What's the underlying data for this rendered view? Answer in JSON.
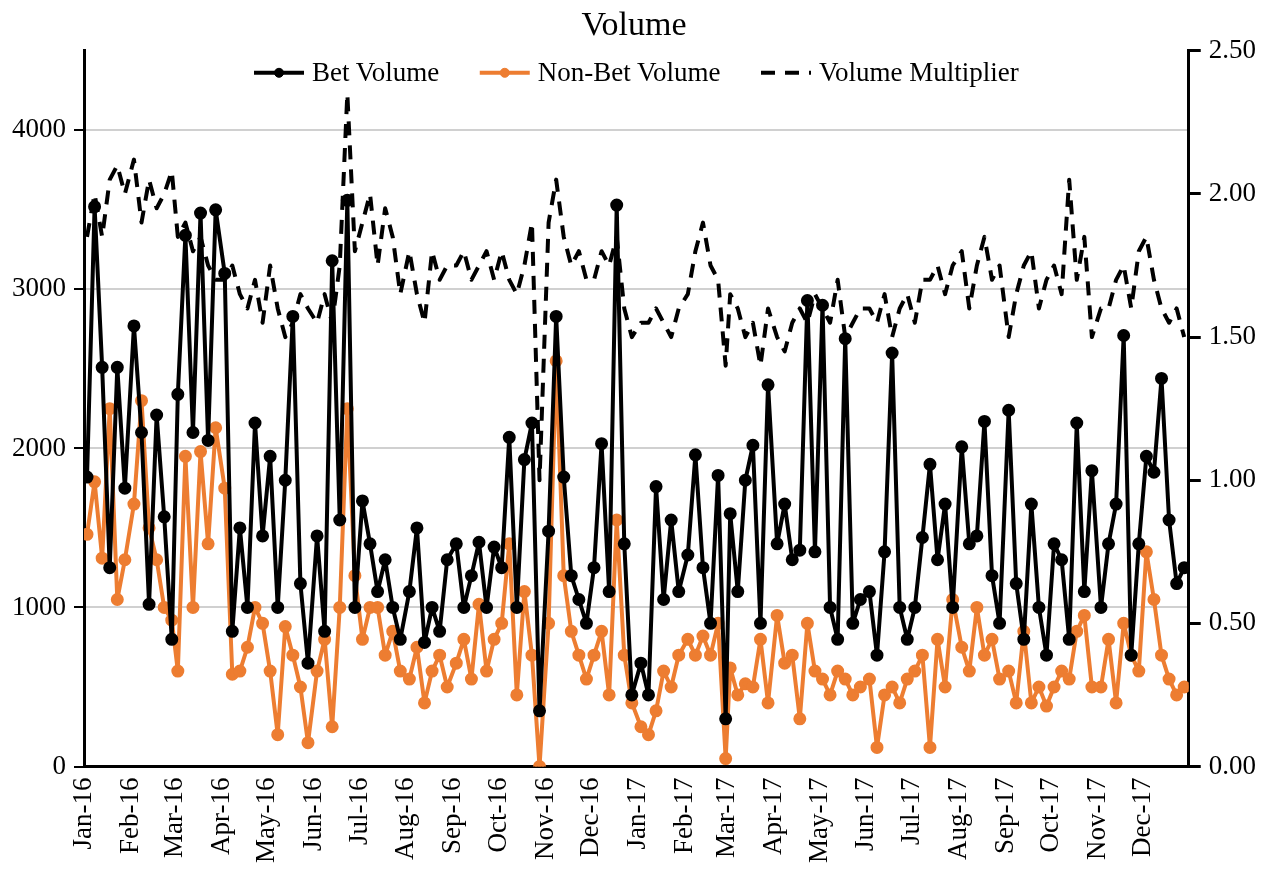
{
  "chart_data": {
    "type": "line",
    "title": "Volume",
    "x": [
      "2016-01-03",
      "2016-01-08",
      "2016-01-13",
      "2016-01-18",
      "2016-01-23",
      "2016-01-28",
      "2016-02-03",
      "2016-02-08",
      "2016-02-13",
      "2016-02-18",
      "2016-02-23",
      "2016-02-28",
      "2016-03-03",
      "2016-03-08",
      "2016-03-13",
      "2016-03-18",
      "2016-03-23",
      "2016-03-28",
      "2016-04-03",
      "2016-04-08",
      "2016-04-13",
      "2016-04-18",
      "2016-04-23",
      "2016-04-28",
      "2016-05-03",
      "2016-05-08",
      "2016-05-13",
      "2016-05-18",
      "2016-05-23",
      "2016-05-28",
      "2016-06-03",
      "2016-06-08",
      "2016-06-13",
      "2016-06-18",
      "2016-06-23",
      "2016-06-28",
      "2016-07-03",
      "2016-07-08",
      "2016-07-13",
      "2016-07-18",
      "2016-07-23",
      "2016-07-28",
      "2016-08-03",
      "2016-08-08",
      "2016-08-13",
      "2016-08-18",
      "2016-08-23",
      "2016-08-28",
      "2016-09-03",
      "2016-09-08",
      "2016-09-13",
      "2016-09-18",
      "2016-09-23",
      "2016-09-28",
      "2016-10-03",
      "2016-10-08",
      "2016-10-13",
      "2016-10-18",
      "2016-10-23",
      "2016-10-28",
      "2016-11-03",
      "2016-11-08",
      "2016-11-13",
      "2016-11-18",
      "2016-11-23",
      "2016-11-28",
      "2016-12-03",
      "2016-12-08",
      "2016-12-13",
      "2016-12-18",
      "2016-12-23",
      "2016-12-28",
      "2017-01-03",
      "2017-01-08",
      "2017-01-13",
      "2017-01-18",
      "2017-01-23",
      "2017-01-28",
      "2017-02-03",
      "2017-02-08",
      "2017-02-13",
      "2017-02-18",
      "2017-02-23",
      "2017-02-28",
      "2017-03-03",
      "2017-03-08",
      "2017-03-13",
      "2017-03-18",
      "2017-03-23",
      "2017-03-28",
      "2017-04-03",
      "2017-04-08",
      "2017-04-13",
      "2017-04-18",
      "2017-04-23",
      "2017-04-28",
      "2017-05-03",
      "2017-05-08",
      "2017-05-13",
      "2017-05-18",
      "2017-05-23",
      "2017-05-28",
      "2017-06-03",
      "2017-06-08",
      "2017-06-13",
      "2017-06-18",
      "2017-06-23",
      "2017-06-28",
      "2017-07-03",
      "2017-07-08",
      "2017-07-13",
      "2017-07-18",
      "2017-07-23",
      "2017-07-28",
      "2017-08-03",
      "2017-08-08",
      "2017-08-13",
      "2017-08-18",
      "2017-08-23",
      "2017-08-28",
      "2017-09-03",
      "2017-09-08",
      "2017-09-13",
      "2017-09-18",
      "2017-09-23",
      "2017-09-28",
      "2017-10-03",
      "2017-10-08",
      "2017-10-13",
      "2017-10-18",
      "2017-10-23",
      "2017-10-28",
      "2017-11-03",
      "2017-11-08",
      "2017-11-13",
      "2017-11-18",
      "2017-11-23",
      "2017-11-28",
      "2017-12-03",
      "2017-12-08",
      "2017-12-13",
      "2017-12-18",
      "2017-12-23",
      "2017-12-28"
    ],
    "series": [
      {
        "name": "Bet Volume",
        "color": "#000000",
        "marker": "circle",
        "line_style": "solid",
        "values": [
          1820,
          3520,
          2510,
          1250,
          2510,
          1750,
          2770,
          2100,
          1020,
          2210,
          1570,
          800,
          2340,
          3340,
          2100,
          3480,
          2050,
          3500,
          3100,
          850,
          1500,
          1000,
          2160,
          1450,
          1950,
          1000,
          1800,
          2830,
          1150,
          650,
          1450,
          850,
          3180,
          1550,
          3560,
          1000,
          1670,
          1400,
          1100,
          1300,
          1000,
          800,
          1100,
          1500,
          780,
          1000,
          850,
          1300,
          1400,
          1000,
          1200,
          1410,
          1000,
          1380,
          1250,
          2070,
          1000,
          1930,
          2160,
          350,
          1480,
          2830,
          1820,
          1200,
          1050,
          900,
          1250,
          2030,
          1100,
          3530,
          1400,
          450,
          650,
          450,
          1760,
          1050,
          1550,
          1100,
          1330,
          1960,
          1250,
          900,
          1830,
          300,
          1590,
          1100,
          1800,
          2020,
          900,
          2400,
          1400,
          1650,
          1300,
          1360,
          2930,
          1350,
          2900,
          1000,
          800,
          2690,
          900,
          1050,
          1100,
          700,
          1350,
          2600,
          1000,
          800,
          1000,
          1440,
          1900,
          1300,
          1650,
          1000,
          2010,
          1400,
          1450,
          2170,
          1200,
          900,
          2240,
          1150,
          800,
          1650,
          1000,
          700,
          1400,
          1300,
          800,
          2160,
          1100,
          1860,
          1000,
          1400,
          1650,
          2710,
          700,
          1400,
          1950,
          1850,
          2440,
          1550,
          1150,
          1250
        ]
      },
      {
        "name": "Non-Bet Volume",
        "color": "#ed7d31",
        "marker": "circle",
        "line_style": "solid",
        "values": [
          1460,
          1790,
          1310,
          2250,
          1050,
          1300,
          1650,
          2300,
          1500,
          1300,
          1000,
          920,
          600,
          1950,
          1000,
          1980,
          1400,
          2130,
          1750,
          580,
          600,
          750,
          1000,
          900,
          600,
          200,
          880,
          700,
          500,
          150,
          600,
          800,
          250,
          1000,
          2250,
          1200,
          800,
          1000,
          1000,
          700,
          850,
          600,
          550,
          750,
          400,
          600,
          700,
          500,
          650,
          800,
          550,
          1020,
          600,
          800,
          900,
          1400,
          450,
          1100,
          700,
          0,
          900,
          2550,
          1200,
          850,
          700,
          550,
          700,
          850,
          450,
          1550,
          700,
          400,
          250,
          200,
          350,
          600,
          500,
          700,
          800,
          700,
          820,
          700,
          900,
          50,
          620,
          450,
          520,
          500,
          800,
          400,
          950,
          650,
          700,
          300,
          900,
          600,
          550,
          450,
          600,
          550,
          450,
          500,
          550,
          120,
          450,
          500,
          400,
          550,
          600,
          700,
          120,
          800,
          500,
          1050,
          750,
          600,
          1000,
          700,
          800,
          550,
          600,
          400,
          850,
          400,
          500,
          380,
          500,
          600,
          550,
          850,
          950,
          500,
          500,
          800,
          400,
          900,
          700,
          600,
          1350,
          1050,
          700,
          550,
          450,
          500
        ]
      },
      {
        "name": "Volume Multiplier",
        "color": "#000000",
        "marker": "none",
        "line_style": "dashed",
        "axis": "y2",
        "values": [
          1.85,
          2.0,
          1.85,
          2.05,
          2.1,
          2.0,
          2.12,
          1.9,
          2.05,
          1.95,
          2.0,
          2.08,
          1.85,
          1.9,
          1.8,
          1.85,
          1.75,
          1.7,
          1.7,
          1.75,
          1.65,
          1.6,
          1.7,
          1.55,
          1.75,
          1.6,
          1.5,
          1.55,
          1.65,
          1.6,
          1.55,
          1.65,
          1.55,
          1.75,
          2.35,
          1.8,
          1.9,
          2.0,
          1.75,
          1.95,
          1.85,
          1.65,
          1.8,
          1.65,
          1.55,
          1.8,
          1.7,
          1.75,
          1.75,
          1.8,
          1.7,
          1.75,
          1.8,
          1.7,
          1.8,
          1.7,
          1.65,
          1.75,
          1.9,
          1.0,
          1.9,
          2.05,
          1.85,
          1.75,
          1.8,
          1.7,
          1.7,
          1.8,
          1.75,
          1.85,
          1.6,
          1.5,
          1.55,
          1.55,
          1.6,
          1.55,
          1.5,
          1.6,
          1.65,
          1.8,
          1.9,
          1.75,
          1.7,
          1.4,
          1.65,
          1.6,
          1.5,
          1.55,
          1.4,
          1.6,
          1.5,
          1.45,
          1.55,
          1.6,
          1.55,
          1.65,
          1.6,
          1.55,
          1.7,
          1.5,
          1.55,
          1.6,
          1.6,
          1.55,
          1.65,
          1.5,
          1.6,
          1.65,
          1.55,
          1.7,
          1.7,
          1.75,
          1.65,
          1.75,
          1.8,
          1.6,
          1.75,
          1.85,
          1.7,
          1.75,
          1.5,
          1.65,
          1.75,
          1.8,
          1.6,
          1.7,
          1.75,
          1.65,
          2.05,
          1.7,
          1.85,
          1.5,
          1.6,
          1.6,
          1.7,
          1.75,
          1.6,
          1.8,
          1.85,
          1.7,
          1.6,
          1.55,
          1.6,
          1.5
        ]
      }
    ],
    "xlim": [
      "2016-01-01",
      "2017-12-31"
    ],
    "xticks": [
      {
        "value": "2016-01-01",
        "label": "Jan-16"
      },
      {
        "value": "2016-02-01",
        "label": "Feb-16"
      },
      {
        "value": "2016-03-01",
        "label": "Mar-16"
      },
      {
        "value": "2016-04-01",
        "label": "Apr-16"
      },
      {
        "value": "2016-05-01",
        "label": "May-16"
      },
      {
        "value": "2016-06-01",
        "label": "Jun-16"
      },
      {
        "value": "2016-07-01",
        "label": "Jul-16"
      },
      {
        "value": "2016-08-01",
        "label": "Aug-16"
      },
      {
        "value": "2016-09-01",
        "label": "Sep-16"
      },
      {
        "value": "2016-10-01",
        "label": "Oct-16"
      },
      {
        "value": "2016-11-01",
        "label": "Nov-16"
      },
      {
        "value": "2016-12-01",
        "label": "Dec-16"
      },
      {
        "value": "2017-01-01",
        "label": "Jan-17"
      },
      {
        "value": "2017-02-01",
        "label": "Feb-17"
      },
      {
        "value": "2017-03-01",
        "label": "Mar-17"
      },
      {
        "value": "2017-04-01",
        "label": "Apr-17"
      },
      {
        "value": "2017-05-01",
        "label": "May-17"
      },
      {
        "value": "2017-06-01",
        "label": "Jun-17"
      },
      {
        "value": "2017-07-01",
        "label": "Jul-17"
      },
      {
        "value": "2017-08-01",
        "label": "Aug-17"
      },
      {
        "value": "2017-09-01",
        "label": "Sep-17"
      },
      {
        "value": "2017-10-01",
        "label": "Oct-17"
      },
      {
        "value": "2017-11-01",
        "label": "Nov-17"
      },
      {
        "value": "2017-12-01",
        "label": "Dec-17"
      }
    ],
    "ylim": [
      0,
      4500
    ],
    "yticks": [
      0,
      1000,
      2000,
      3000,
      4000
    ],
    "y2lim": [
      0,
      2.5
    ],
    "y2ticks": [
      {
        "value": 0,
        "label": "0.00"
      },
      {
        "value": 0.5,
        "label": "0.50"
      },
      {
        "value": 1,
        "label": "1.00"
      },
      {
        "value": 1.5,
        "label": "1.50"
      },
      {
        "value": 2,
        "label": "2.00"
      },
      {
        "value": 2.5,
        "label": "2.50"
      }
    ],
    "grid": "y",
    "legend": "top"
  }
}
